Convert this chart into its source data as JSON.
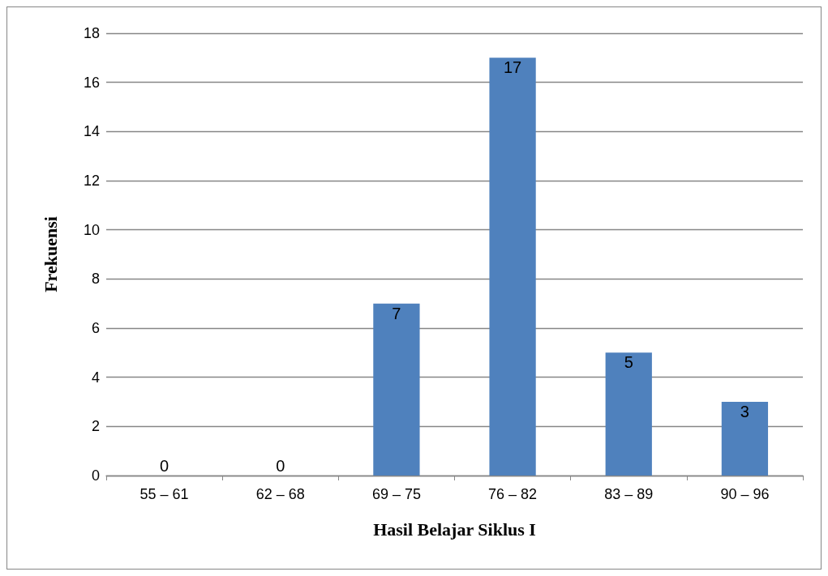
{
  "chart_data": {
    "type": "bar",
    "xlabel": "Hasil Belajar Siklus I",
    "ylabel": "Frekuensi",
    "categories": [
      "55 – 61",
      "62 – 68",
      "69 – 75",
      "76 – 82",
      "83 – 89",
      "90 – 96"
    ],
    "values": [
      0,
      0,
      7,
      17,
      5,
      3
    ],
    "color": "#4f81bd",
    "ylim": [
      0,
      18
    ],
    "yticks": [
      0,
      2,
      4,
      6,
      8,
      10,
      12,
      14,
      16,
      18
    ],
    "grid": "y",
    "data_labels": true
  }
}
